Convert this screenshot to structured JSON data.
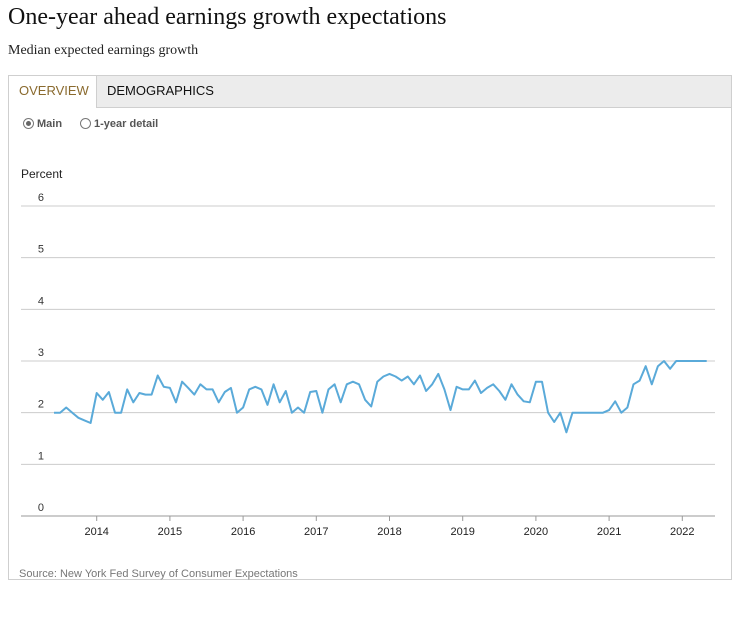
{
  "header": {
    "title": "One-year ahead earnings growth expectations",
    "subtitle": "Median expected earnings growth"
  },
  "tabs": [
    {
      "label": "OVERVIEW",
      "active": true
    },
    {
      "label": "DEMOGRAPHICS",
      "active": false
    }
  ],
  "view_options": [
    {
      "label": "Main",
      "checked": true
    },
    {
      "label": "1-year detail",
      "checked": false
    }
  ],
  "source": "Source: New York Fed Survey of Consumer Expectations",
  "colors": {
    "line": "#5aaad9",
    "grid": "#cccccc",
    "active_tab": "#8a6a2e"
  },
  "chart_data": {
    "type": "line",
    "ylabel": "Percent",
    "ylim": [
      0,
      6
    ],
    "yticks": [
      0,
      1,
      2,
      3,
      4,
      5,
      6
    ],
    "xticks": [
      "2014",
      "2015",
      "2016",
      "2017",
      "2018",
      "2019",
      "2020",
      "2021",
      "2022"
    ],
    "grid": true,
    "series": [
      {
        "start": "2013-06",
        "frequency": "monthly",
        "values": [
          2.0,
          2.0,
          2.1,
          2.0,
          1.9,
          1.85,
          1.8,
          2.38,
          2.25,
          2.4,
          2.0,
          2.0,
          2.45,
          2.2,
          2.38,
          2.35,
          2.35,
          2.72,
          2.5,
          2.48,
          2.2,
          2.6,
          2.48,
          2.35,
          2.55,
          2.45,
          2.45,
          2.2,
          2.4,
          2.48,
          2.0,
          2.1,
          2.45,
          2.5,
          2.45,
          2.15,
          2.55,
          2.2,
          2.42,
          2.0,
          2.1,
          2.0,
          2.4,
          2.42,
          2.0,
          2.45,
          2.55,
          2.2,
          2.55,
          2.6,
          2.55,
          2.25,
          2.12,
          2.6,
          2.7,
          2.75,
          2.7,
          2.62,
          2.7,
          2.55,
          2.72,
          2.42,
          2.55,
          2.75,
          2.45,
          2.05,
          2.5,
          2.45,
          2.45,
          2.62,
          2.38,
          2.48,
          2.55,
          2.42,
          2.25,
          2.55,
          2.35,
          2.22,
          2.2,
          2.6,
          2.6,
          2.0,
          1.82,
          2.0,
          1.62,
          2.0,
          2.0,
          2.0,
          2.0,
          2.0,
          2.0,
          2.05,
          2.22,
          2.0,
          2.1,
          2.55,
          2.62,
          2.9,
          2.55,
          2.9,
          3.0,
          2.85,
          3.0,
          3.0,
          3.0,
          3.0,
          3.0,
          3.0
        ]
      }
    ]
  }
}
